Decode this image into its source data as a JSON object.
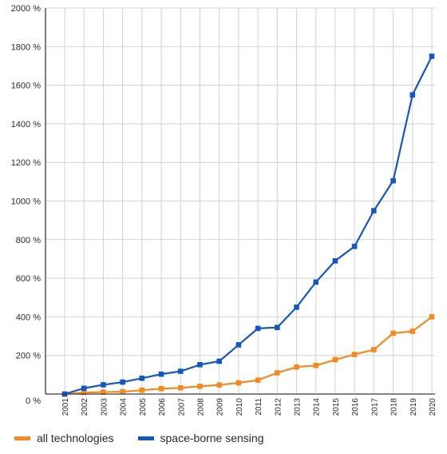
{
  "chart_data": {
    "type": "line",
    "x": [
      "2001",
      "2002",
      "2003",
      "2004",
      "2005",
      "2006",
      "2007",
      "2008",
      "2009",
      "2010",
      "2011",
      "2012",
      "2013",
      "2014",
      "2015",
      "2016",
      "2017",
      "2018",
      "2019",
      "2020"
    ],
    "series": [
      {
        "name": "all technologies",
        "color": "#f5891f",
        "values": [
          0,
          8,
          10,
          12,
          20,
          28,
          32,
          40,
          47,
          58,
          72,
          110,
          140,
          148,
          178,
          205,
          230,
          315,
          325,
          400
        ]
      },
      {
        "name": "space-borne sensing",
        "color": "#1557c0",
        "values": [
          0,
          30,
          48,
          62,
          82,
          103,
          118,
          152,
          170,
          255,
          340,
          345,
          450,
          580,
          690,
          765,
          950,
          1105,
          1550,
          1750
        ]
      }
    ],
    "ylim": [
      0,
      2000
    ],
    "yticks": [
      "0 %",
      "200 %",
      "400 %",
      "600 %",
      "800 %",
      "1000 %",
      "1200 %",
      "1400 %",
      "1600 %",
      "1800 %",
      "2000 %"
    ],
    "grid": true,
    "legend_position": "bottom-left"
  }
}
